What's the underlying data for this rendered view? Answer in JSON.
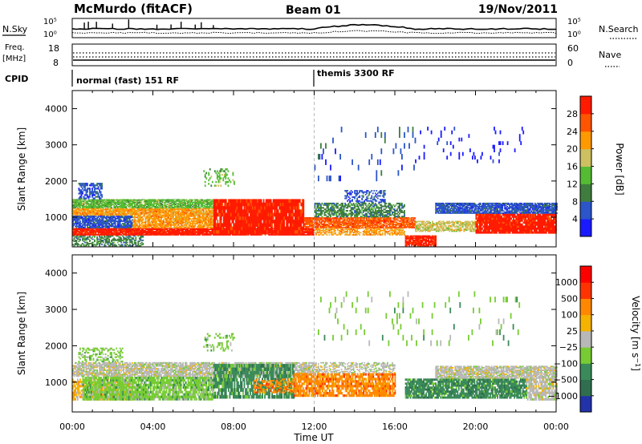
{
  "header": {
    "title": "McMurdo (fitACF)",
    "beam": "Beam 01",
    "date": "19/Nov/2011"
  },
  "strips": {
    "nsky_label": "N.Sky",
    "nsky_ticks": [
      "10^5",
      "10^0"
    ],
    "nsearch_label": "N.Search",
    "nsearch_ticks": [
      "10^5",
      "10^0"
    ],
    "freq_label": "Freq.",
    "freq_unit": "[MHz]",
    "freq_ticks": [
      "18",
      "8"
    ],
    "nave_label": "Nave",
    "nave_ticks": [
      "60",
      "0"
    ],
    "cpid_label": "CPID",
    "cpid_modes": [
      {
        "name": "normal (fast) 151 RF",
        "start_hour": 0
      },
      {
        "name": "themis 3300 RF",
        "start_hour": 12
      }
    ]
  },
  "chart_data": [
    {
      "type": "heatmap",
      "title": "",
      "xlabel": "Time UT",
      "ylabel": "Slant Range [km]",
      "xlim": [
        0,
        24
      ],
      "ylim": [
        180,
        4500
      ],
      "x_ticks": [
        "00:00",
        "04:00",
        "08:00",
        "12:00",
        "16:00",
        "20:00",
        "00:00"
      ],
      "y_ticks": [
        1000,
        2000,
        3000,
        4000
      ],
      "colorbar": {
        "label": "Power [dB]",
        "ticks": [
          4,
          8,
          12,
          16,
          20,
          24,
          28
        ],
        "range": [
          0,
          30
        ],
        "colors": [
          "#1a1aff",
          "#2b55c8",
          "#3e7d3e",
          "#55bb33",
          "#ccc060",
          "#ff9900",
          "#ff5500",
          "#ff1a00"
        ]
      },
      "bands": [
        {
          "t0": 0.0,
          "t1": 3.5,
          "r0": 200,
          "r1": 500,
          "level": 2,
          "density": 0.55
        },
        {
          "t0": 0.0,
          "t1": 12.0,
          "r0": 500,
          "r1": 700,
          "level": 7,
          "density": 0.95
        },
        {
          "t0": 0.0,
          "t1": 3.0,
          "r0": 700,
          "r1": 1050,
          "level": 1,
          "density": 0.85
        },
        {
          "t0": 0.0,
          "t1": 7.0,
          "r0": 1050,
          "r1": 1250,
          "level": 5,
          "density": 0.9
        },
        {
          "t0": 0.0,
          "t1": 7.0,
          "r0": 1250,
          "r1": 1500,
          "level": 3,
          "density": 0.85
        },
        {
          "t0": 0.3,
          "t1": 1.5,
          "r0": 1500,
          "r1": 1950,
          "level": 1,
          "density": 0.65
        },
        {
          "t0": 3.0,
          "t1": 7.0,
          "r0": 700,
          "r1": 1050,
          "level": 5,
          "density": 0.8
        },
        {
          "t0": 7.0,
          "t1": 11.5,
          "r0": 550,
          "r1": 1500,
          "level": 7,
          "density": 0.95
        },
        {
          "t0": 11.5,
          "t1": 17.0,
          "r0": 700,
          "r1": 1000,
          "level": 6,
          "density": 0.85
        },
        {
          "t0": 12.0,
          "t1": 16.5,
          "r0": 1000,
          "r1": 1400,
          "level": 2,
          "density": 0.65
        },
        {
          "t0": 13.5,
          "t1": 15.5,
          "r0": 1400,
          "r1": 1750,
          "level": 1,
          "density": 0.4
        },
        {
          "t0": 12.0,
          "t1": 16.5,
          "r0": 500,
          "r1": 700,
          "level": 5,
          "density": 0.6
        },
        {
          "t0": 16.5,
          "t1": 18.0,
          "r0": 200,
          "r1": 500,
          "level": 7,
          "density": 0.9
        },
        {
          "t0": 17.0,
          "t1": 20.0,
          "r0": 600,
          "r1": 900,
          "level": 4,
          "density": 0.7
        },
        {
          "t0": 20.0,
          "t1": 24.0,
          "r0": 550,
          "r1": 1100,
          "level": 7,
          "density": 0.95
        },
        {
          "t0": 18.0,
          "t1": 24.0,
          "r0": 1100,
          "r1": 1400,
          "level": 1,
          "density": 0.85
        },
        {
          "t0": 6.5,
          "t1": 8.0,
          "r0": 1850,
          "r1": 2350,
          "level": 3,
          "density": 0.3
        },
        {
          "t0": 12.0,
          "t1": 17.0,
          "r0": 2000,
          "r1": 3500,
          "level": 1,
          "density": 0.05
        },
        {
          "t0": 17.0,
          "t1": 22.5,
          "r0": 2500,
          "r1": 3500,
          "level": 0,
          "density": 0.05
        }
      ]
    },
    {
      "type": "heatmap",
      "title": "",
      "xlabel": "Time UT",
      "ylabel": "Slant Range [km]",
      "xlim": [
        0,
        24
      ],
      "ylim": [
        180,
        4500
      ],
      "x_ticks": [
        "00:00",
        "04:00",
        "08:00",
        "12:00",
        "16:00",
        "20:00",
        "00:00"
      ],
      "y_ticks": [
        1000,
        2000,
        3000,
        4000
      ],
      "colorbar": {
        "label": "Velocity [m s^-1]",
        "ticks": [
          1000,
          500,
          100,
          25,
          -25,
          -100,
          -500,
          -1000
        ],
        "range": [
          -1250,
          1250
        ],
        "colors": [
          "#2233aa",
          "#2f6e4e",
          "#3a8a5a",
          "#77cc33",
          "#b8b8b8",
          "#f5b300",
          "#ff8800",
          "#ff3300",
          "#ff0000"
        ]
      },
      "bands": [
        {
          "t0": 0.0,
          "t1": 12.0,
          "r0": 1150,
          "r1": 1550,
          "level": 4,
          "density": 0.8
        },
        {
          "t0": 0.3,
          "t1": 2.5,
          "r0": 1550,
          "r1": 1950,
          "level": 3,
          "density": 0.45
        },
        {
          "t0": 0.0,
          "t1": 3.0,
          "r0": 500,
          "r1": 1100,
          "level": 5,
          "density": 0.75
        },
        {
          "t0": 0.5,
          "t1": 7.0,
          "r0": 500,
          "r1": 1150,
          "level": 3,
          "density": 0.85
        },
        {
          "t0": 7.0,
          "t1": 11.0,
          "r0": 550,
          "r1": 1500,
          "level": 2,
          "density": 0.75
        },
        {
          "t0": 9.0,
          "t1": 11.0,
          "r0": 700,
          "r1": 1100,
          "level": 6,
          "density": 0.5
        },
        {
          "t0": 11.0,
          "t1": 16.0,
          "r0": 600,
          "r1": 1250,
          "level": 6,
          "density": 0.8
        },
        {
          "t0": 12.0,
          "t1": 16.0,
          "r0": 1250,
          "r1": 1550,
          "level": 4,
          "density": 0.45
        },
        {
          "t0": 16.5,
          "t1": 22.5,
          "r0": 550,
          "r1": 1100,
          "level": 2,
          "density": 0.85
        },
        {
          "t0": 18.0,
          "t1": 24.0,
          "r0": 1100,
          "r1": 1450,
          "level": 4,
          "density": 0.85
        },
        {
          "t0": 22.5,
          "t1": 24.0,
          "r0": 500,
          "r1": 1100,
          "level": 4,
          "density": 0.75
        },
        {
          "t0": 6.5,
          "t1": 8.0,
          "r0": 1850,
          "r1": 2350,
          "level": 3,
          "density": 0.25
        },
        {
          "t0": 12.0,
          "t1": 22.5,
          "r0": 2000,
          "r1": 3500,
          "level": 3,
          "density": 0.05
        }
      ]
    }
  ]
}
